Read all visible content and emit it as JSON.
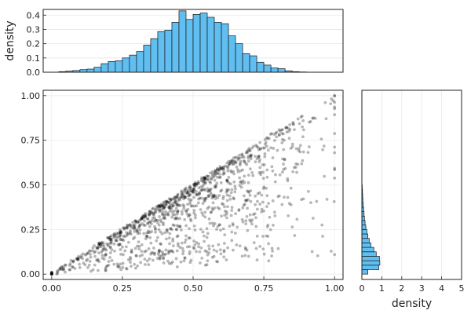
{
  "chart_data": [
    {
      "id": "top",
      "type": "bar",
      "title": "",
      "xlabel": "",
      "ylabel": "density",
      "xlim": [
        -0.03,
        1.03
      ],
      "ylim": [
        0,
        0.44
      ],
      "yticks": [
        0.0,
        0.1,
        0.2,
        0.3,
        0.4
      ],
      "ytick_labels": [
        "0.0",
        "0.1",
        "0.2",
        "0.3",
        "0.4"
      ],
      "bin_width": 0.025,
      "bin_start": 0.0,
      "values": [
        0.0,
        0.004,
        0.008,
        0.012,
        0.018,
        0.022,
        0.035,
        0.06,
        0.075,
        0.08,
        0.1,
        0.12,
        0.145,
        0.19,
        0.235,
        0.285,
        0.295,
        0.35,
        0.43,
        0.37,
        0.405,
        0.415,
        0.385,
        0.35,
        0.34,
        0.255,
        0.2,
        0.13,
        0.115,
        0.07,
        0.05,
        0.03,
        0.025,
        0.01,
        0.004,
        0.002,
        0.0,
        0.0,
        0.0,
        0.0
      ],
      "grid": true,
      "color": "#60bef0"
    },
    {
      "id": "scatter",
      "type": "scatter",
      "title": "",
      "xlabel": "",
      "ylabel": "",
      "xlim": [
        -0.03,
        1.03
      ],
      "ylim": [
        -0.03,
        1.03
      ],
      "xticks": [
        0.0,
        0.25,
        0.5,
        0.75,
        1.0
      ],
      "xtick_labels": [
        "0.00",
        "0.25",
        "0.50",
        "0.75",
        "1.00"
      ],
      "yticks": [
        0.0,
        0.25,
        0.5,
        0.75,
        1.0
      ],
      "ytick_labels": [
        "0.00",
        "0.25",
        "0.50",
        "0.75",
        "1.00"
      ],
      "n_points": 1200,
      "grid": true,
      "color": "#000000"
    },
    {
      "id": "right",
      "type": "bar",
      "orientation": "horizontal",
      "title": "",
      "xlabel": "density",
      "ylabel": "",
      "xlim": [
        0,
        5
      ],
      "ylim": [
        -0.03,
        1.03
      ],
      "xticks": [
        0,
        1,
        2,
        3,
        4,
        5
      ],
      "xtick_labels": [
        "0",
        "1",
        "2",
        "3",
        "4",
        "5"
      ],
      "bin_width": 0.025,
      "bin_start": 0.0,
      "values": [
        0.3,
        0.85,
        0.9,
        0.88,
        0.72,
        0.6,
        0.45,
        0.37,
        0.3,
        0.25,
        0.2,
        0.16,
        0.13,
        0.11,
        0.09,
        0.07,
        0.05,
        0.04,
        0.03,
        0.02
      ],
      "grid": true,
      "color": "#60bef0"
    }
  ]
}
